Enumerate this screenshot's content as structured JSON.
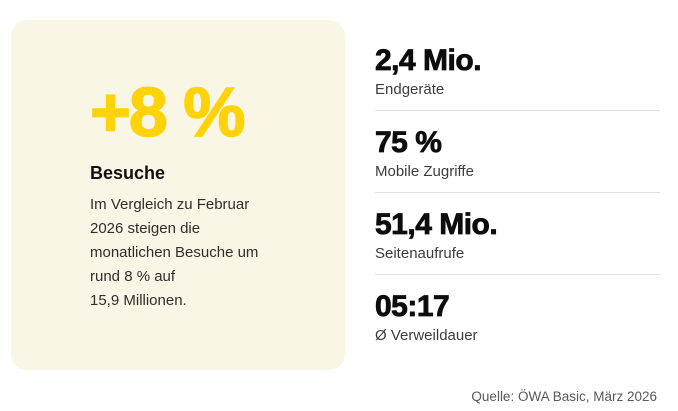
{
  "card": {
    "headline": "+8 %",
    "title": "Besuche",
    "description": "Im Vergleich zu Februar\n2026 steigen die\nmonatlichen Besuche um\nrund 8 % auf\n15,9 Millionen.",
    "background_color": "#faf6e5",
    "accent_color": "#ffd20a"
  },
  "stats": [
    {
      "value": "2,4 Mio.",
      "label": "Endgeräte"
    },
    {
      "value": "75 %",
      "label": "Mobile Zugriffe"
    },
    {
      "value": "51,4 Mio.",
      "label": "Seitenaufrufe"
    },
    {
      "value": "05:17",
      "label": "Ø Verweildauer"
    }
  ],
  "source": "Quelle: ÖWA Basic, März 2026"
}
